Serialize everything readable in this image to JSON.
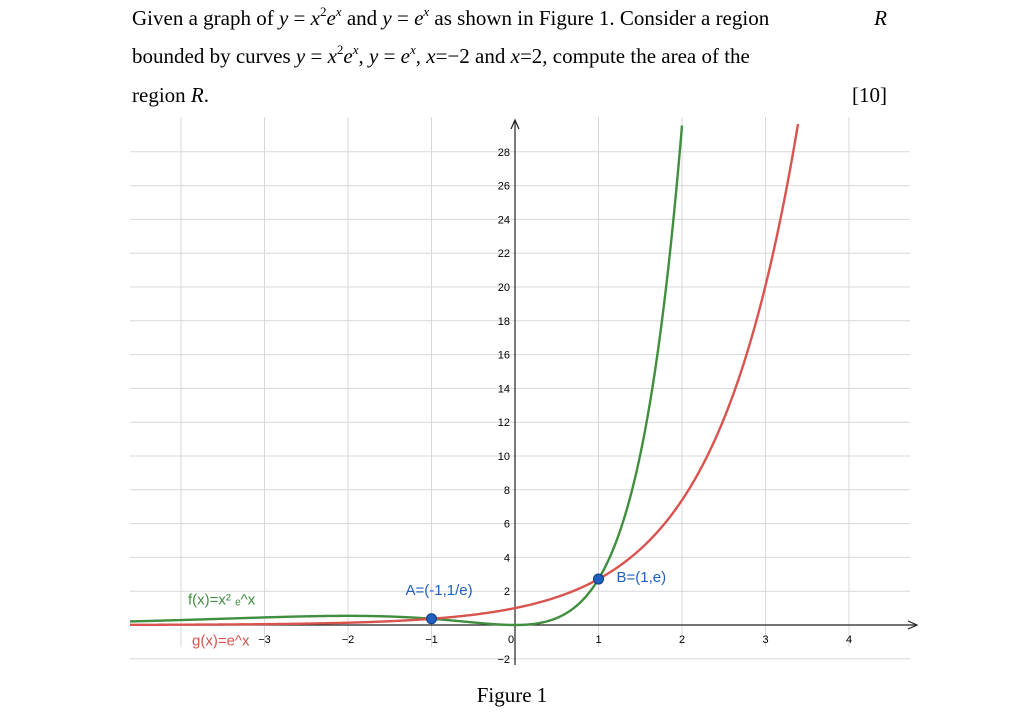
{
  "question": {
    "l1_a": "Given a graph of ",
    "l1_b": " and ",
    "l1_c": " as shown in Figure 1. Consider a region ",
    "l1_d": "R",
    "l2_a": "bounded by curves ",
    "l2_b": ", ",
    "l2_c": ", ",
    "l2_d": "x",
    "l2_e": "=−2",
    "l2_f": " and ",
    "l2_g": "x",
    "l2_h": "=2",
    "l2_i": ", compute the area of the",
    "l3_a": "region ",
    "l3_b": "R",
    "l3_c": ".",
    "marks": "[10]",
    "f_y": "y",
    "f_eq": " = ",
    "f_x": "x",
    "f_2": "2",
    "f_e": "e",
    "f_xx": "x",
    "g_y": "y",
    "g_eq": " = ",
    "g_e": "e",
    "g_x": "x"
  },
  "figure": {
    "caption": "Figure 1",
    "point_a_label": "A=(-1,1/e)",
    "point_b_label": "B=(1,e)",
    "f_label": "f(x)=x² ₑ^x",
    "g_label": "g(x)=e^x",
    "colors": {
      "f": "#3f8f3f",
      "g": "#d9534f",
      "point": "#1f5fbf",
      "grid": "#d8d8d8"
    }
  },
  "chart_data": {
    "type": "line",
    "x_ticks": [
      "-3",
      "-2",
      "-1",
      "0",
      "1",
      "2",
      "3",
      "4"
    ],
    "y_ticks": [
      "-2",
      "2",
      "4",
      "6",
      "8",
      "10",
      "12",
      "14",
      "16",
      "18",
      "20",
      "22",
      "24",
      "26",
      "28"
    ],
    "xlim": [
      -4.6,
      4.8
    ],
    "ylim": [
      -2.6,
      29.5
    ],
    "grid": true,
    "series": [
      {
        "name": "f(x)=x² ₑ^x",
        "function": "x^2*e^x",
        "color": "#3f8f3f"
      },
      {
        "name": "g(x)=e^x",
        "function": "e^x",
        "color": "#d9534f"
      }
    ],
    "points": [
      {
        "label": "A=(-1,1/e)",
        "x": -1,
        "y": 0.3679
      },
      {
        "label": "B=(1,e)",
        "x": 1,
        "y": 2.7183
      }
    ]
  }
}
